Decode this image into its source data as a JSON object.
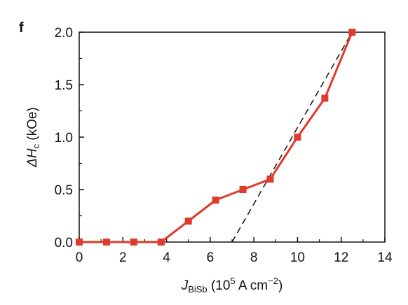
{
  "panel_label": "f",
  "chart_data": {
    "type": "line",
    "xlabel": {
      "main": "J",
      "sub": "BiSb",
      "unit_prefix": " (10",
      "unit_exp": "5",
      "unit_mid": " A cm",
      "unit_exp2": "−2",
      "unit_suffix": ")"
    },
    "ylabel": {
      "main": "ΔH",
      "sub": "c",
      "unit": " (kOe)"
    },
    "xlim": [
      0,
      14
    ],
    "ylim": [
      0,
      2.0
    ],
    "xticks": [
      0,
      2,
      4,
      6,
      8,
      10,
      12,
      14
    ],
    "xtick_labels": [
      "0",
      "2",
      "4",
      "6",
      "8",
      "10",
      "12",
      "14"
    ],
    "yticks": [
      0,
      0.5,
      1.0,
      1.5,
      2.0
    ],
    "ytick_labels": [
      "0.0",
      "0.5",
      "1.0",
      "1.5",
      "2.0"
    ],
    "grid": false,
    "series": [
      {
        "color": "#e03a2c",
        "marker": "square",
        "x": [
          0,
          1.25,
          2.5,
          3.75,
          5.0,
          6.25,
          7.5,
          8.75,
          10.0,
          11.25,
          12.5
        ],
        "y": [
          0,
          0,
          0,
          0,
          0.2,
          0.4,
          0.5,
          0.6,
          1.0,
          1.37,
          2.0
        ]
      }
    ],
    "fit_line": {
      "style": "dashed",
      "color": "#111111",
      "x": [
        7.0,
        12.5
      ],
      "y": [
        0,
        2.0
      ]
    }
  }
}
